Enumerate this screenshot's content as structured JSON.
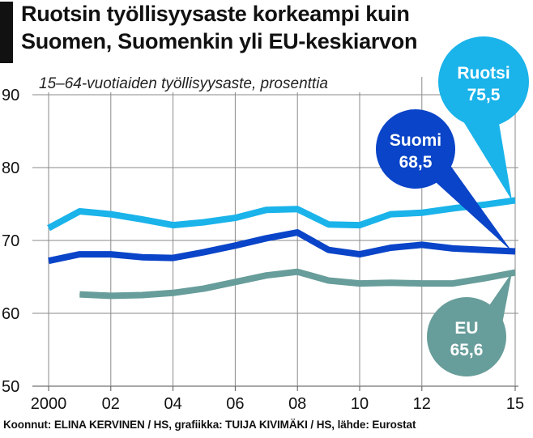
{
  "chart_data": {
    "type": "line",
    "title_lines": [
      "Ruotsin työllisyysaste korkeampi kuin",
      "Suomen, Suomenkin yli EU-keskiarvon"
    ],
    "subtitle": "15–64-vuotiaiden työllisyysaste, prosenttia",
    "x_tick_labels": [
      "2000",
      "02",
      "04",
      "06",
      "08",
      "10",
      "12",
      "15"
    ],
    "x_tick_years": [
      2000,
      2002,
      2004,
      2006,
      2008,
      2010,
      2012,
      2015
    ],
    "y_ticks": [
      50,
      60,
      70,
      80,
      90
    ],
    "ylim": [
      50,
      90
    ],
    "xlim": [
      2000,
      2015
    ],
    "grid": true,
    "x": [
      2000,
      2001,
      2002,
      2003,
      2004,
      2005,
      2006,
      2007,
      2008,
      2009,
      2010,
      2011,
      2012,
      2013,
      2014,
      2015
    ],
    "series": [
      {
        "name": "Ruotsi",
        "color": "#1ab3ea",
        "values": [
          71.7,
          74.0,
          73.6,
          72.9,
          72.1,
          72.5,
          73.1,
          74.2,
          74.3,
          72.2,
          72.1,
          73.6,
          73.8,
          74.4,
          74.9,
          75.5
        ],
        "label_name": "Ruotsi",
        "label_value": "75,5"
      },
      {
        "name": "Suomi",
        "color": "#0a44c8",
        "values": [
          67.2,
          68.1,
          68.1,
          67.7,
          67.6,
          68.4,
          69.3,
          70.3,
          71.1,
          68.7,
          68.1,
          69.0,
          69.4,
          68.9,
          68.7,
          68.5
        ],
        "label_name": "Suomi",
        "label_value": "68,5"
      },
      {
        "name": "EU",
        "color": "#679d9a",
        "values": [
          null,
          62.6,
          62.4,
          62.5,
          62.8,
          63.4,
          64.3,
          65.2,
          65.7,
          64.5,
          64.1,
          64.2,
          64.1,
          64.1,
          64.8,
          65.6
        ],
        "label_name": "EU",
        "label_value": "65,6"
      }
    ]
  },
  "footer": "Koonnut: ELINA KERVINEN / HS, grafiikka: TUIJA KIVIMÄKI / HS, lähde: Eurostat"
}
